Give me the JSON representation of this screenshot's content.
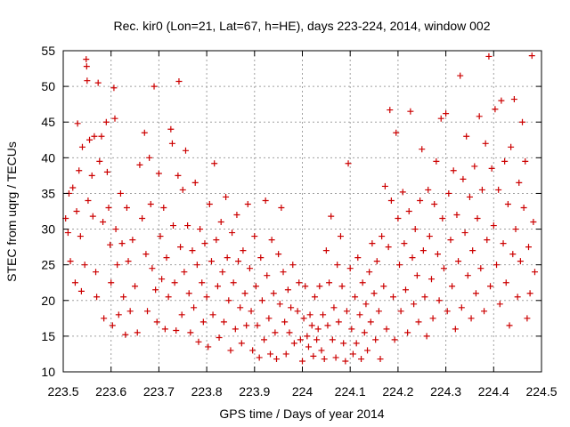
{
  "chart_data": {
    "type": "scatter",
    "title": "Rec. kir0 (Lon=21, Lat=67, h=HE), days 223-224, 2014, window 002",
    "xlabel": "GPS time / Days of year 2014",
    "ylabel": "STEC from uqrg / TECUs",
    "xlim": [
      223.5,
      224.5
    ],
    "ylim": [
      10,
      55
    ],
    "xticks": [
      "223.5",
      "223.6",
      "223.7",
      "223.8",
      "223.9",
      "224",
      "224.1",
      "224.2",
      "224.3",
      "224.4",
      "224.5"
    ],
    "xtick_values": [
      223.5,
      223.6,
      223.7,
      223.8,
      223.9,
      224.0,
      224.1,
      224.2,
      224.3,
      224.4,
      224.5
    ],
    "yticks": [
      "10",
      "15",
      "20",
      "25",
      "30",
      "35",
      "40",
      "45",
      "50",
      "55"
    ],
    "ytick_values": [
      10,
      15,
      20,
      25,
      30,
      35,
      40,
      45,
      50,
      55
    ],
    "grid": true,
    "marker": "+",
    "color": "#cc0000",
    "series": [
      {
        "points": [
          [
            223.505,
            31.5
          ],
          [
            223.51,
            29.5
          ],
          [
            223.512,
            35.0
          ],
          [
            223.515,
            25.5
          ],
          [
            223.52,
            35.8
          ],
          [
            223.525,
            22.5
          ],
          [
            223.528,
            32.5
          ],
          [
            223.53,
            44.8
          ],
          [
            223.533,
            38.2
          ],
          [
            223.536,
            29.0
          ],
          [
            223.538,
            21.3
          ],
          [
            223.54,
            41.5
          ],
          [
            223.545,
            25.0
          ],
          [
            223.548,
            53.8
          ],
          [
            223.549,
            52.8
          ],
          [
            223.55,
            50.8
          ],
          [
            223.552,
            34.0
          ],
          [
            223.555,
            42.5
          ],
          [
            223.56,
            37.5
          ],
          [
            223.562,
            31.8
          ],
          [
            223.565,
            43.0
          ],
          [
            223.568,
            24.0
          ],
          [
            223.57,
            20.5
          ],
          [
            223.573,
            50.5
          ],
          [
            223.576,
            39.5
          ],
          [
            223.58,
            43.0
          ],
          [
            223.583,
            31.0
          ],
          [
            223.585,
            17.5
          ],
          [
            223.59,
            45.0
          ],
          [
            223.592,
            38.0
          ],
          [
            223.595,
            33.0
          ],
          [
            223.598,
            27.8
          ],
          [
            223.6,
            22.5
          ],
          [
            223.603,
            16.5
          ],
          [
            223.606,
            49.8
          ],
          [
            223.608,
            45.5
          ],
          [
            223.61,
            30.0
          ],
          [
            223.613,
            25.0
          ],
          [
            223.616,
            18.0
          ],
          [
            223.62,
            35.0
          ],
          [
            223.623,
            28.0
          ],
          [
            223.626,
            20.5
          ],
          [
            223.63,
            15.2
          ],
          [
            223.633,
            33.0
          ],
          [
            223.636,
            25.5
          ],
          [
            223.64,
            18.5
          ],
          [
            223.645,
            28.5
          ],
          [
            223.65,
            22.0
          ],
          [
            223.655,
            15.5
          ],
          [
            223.66,
            39.0
          ],
          [
            223.665,
            31.5
          ],
          [
            223.67,
            43.5
          ],
          [
            223.673,
            26.5
          ],
          [
            223.676,
            18.5
          ],
          [
            223.68,
            40.0
          ],
          [
            223.683,
            33.5
          ],
          [
            223.686,
            24.5
          ],
          [
            223.69,
            50.0
          ],
          [
            223.693,
            21.5
          ],
          [
            223.696,
            17.0
          ],
          [
            223.7,
            37.8
          ],
          [
            223.703,
            29.0
          ],
          [
            223.706,
            23.0
          ],
          [
            223.71,
            33.0
          ],
          [
            223.713,
            16.0
          ],
          [
            223.716,
            26.0
          ],
          [
            223.72,
            20.5
          ],
          [
            223.725,
            44.0
          ],
          [
            223.728,
            42.0
          ],
          [
            223.73,
            30.5
          ],
          [
            223.733,
            22.5
          ],
          [
            223.736,
            15.8
          ],
          [
            223.74,
            37.5
          ],
          [
            223.742,
            50.7
          ],
          [
            223.745,
            27.5
          ],
          [
            223.748,
            18.0
          ],
          [
            223.75,
            35.5
          ],
          [
            223.753,
            24.0
          ],
          [
            223.756,
            41.0
          ],
          [
            223.76,
            30.5
          ],
          [
            223.763,
            21.0
          ],
          [
            223.766,
            15.5
          ],
          [
            223.77,
            27.0
          ],
          [
            223.773,
            19.0
          ],
          [
            223.776,
            36.5
          ],
          [
            223.78,
            25.0
          ],
          [
            223.783,
            14.2
          ],
          [
            223.786,
            30.0
          ],
          [
            223.79,
            22.5
          ],
          [
            223.793,
            17.0
          ],
          [
            223.796,
            28.0
          ],
          [
            223.8,
            20.5
          ],
          [
            223.803,
            13.5
          ],
          [
            223.806,
            33.5
          ],
          [
            223.81,
            25.5
          ],
          [
            223.813,
            18.0
          ],
          [
            223.816,
            39.2
          ],
          [
            223.82,
            28.5
          ],
          [
            223.823,
            22.0
          ],
          [
            223.826,
            14.8
          ],
          [
            223.83,
            31.0
          ],
          [
            223.833,
            24.0
          ],
          [
            223.836,
            17.0
          ],
          [
            223.84,
            34.5
          ],
          [
            223.843,
            26.0
          ],
          [
            223.846,
            20.0
          ],
          [
            223.85,
            13.0
          ],
          [
            223.853,
            29.5
          ],
          [
            223.856,
            22.5
          ],
          [
            223.86,
            16.0
          ],
          [
            223.863,
            32.0
          ],
          [
            223.866,
            25.5
          ],
          [
            223.87,
            19.0
          ],
          [
            223.873,
            14.0
          ],
          [
            223.876,
            27.0
          ],
          [
            223.88,
            21.0
          ],
          [
            223.883,
            16.5
          ],
          [
            223.886,
            33.5
          ],
          [
            223.89,
            24.5
          ],
          [
            223.893,
            18.5
          ],
          [
            223.896,
            13.0
          ],
          [
            223.9,
            29.0
          ],
          [
            223.903,
            22.0
          ],
          [
            223.906,
            16.5
          ],
          [
            223.91,
            12.0
          ],
          [
            223.913,
            26.0
          ],
          [
            223.916,
            20.0
          ],
          [
            223.92,
            14.5
          ],
          [
            223.923,
            34.0
          ],
          [
            223.926,
            23.5
          ],
          [
            223.93,
            17.5
          ],
          [
            223.933,
            12.5
          ],
          [
            223.936,
            28.5
          ],
          [
            223.94,
            21.0
          ],
          [
            223.943,
            15.5
          ],
          [
            223.946,
            11.8
          ],
          [
            223.95,
            26.5
          ],
          [
            223.953,
            19.5
          ],
          [
            223.956,
            33.0
          ],
          [
            223.96,
            24.0
          ],
          [
            223.963,
            17.0
          ],
          [
            223.966,
            12.5
          ],
          [
            223.97,
            21.5
          ],
          [
            223.973,
            15.5
          ],
          [
            223.976,
            19.0
          ],
          [
            223.98,
            25.0
          ],
          [
            223.983,
            14.0
          ],
          [
            223.99,
            18.5
          ],
          [
            223.993,
            22.5
          ],
          [
            223.996,
            14.5
          ],
          [
            224.0,
            11.5
          ],
          [
            224.003,
            17.5
          ],
          [
            224.006,
            22.0
          ],
          [
            224.01,
            15.0
          ],
          [
            224.013,
            13.5
          ],
          [
            224.016,
            18.0
          ],
          [
            224.02,
            16.5
          ],
          [
            224.023,
            12.2
          ],
          [
            224.026,
            20.5
          ],
          [
            224.03,
            14.5
          ],
          [
            224.033,
            16.0
          ],
          [
            224.036,
            22.0
          ],
          [
            224.04,
            13.0
          ],
          [
            224.043,
            18.0
          ],
          [
            224.046,
            11.8
          ],
          [
            224.05,
            27.0
          ],
          [
            224.053,
            16.5
          ],
          [
            224.056,
            22.5
          ],
          [
            224.06,
            31.8
          ],
          [
            224.063,
            14.5
          ],
          [
            224.066,
            19.0
          ],
          [
            224.07,
            12.0
          ],
          [
            224.073,
            25.0
          ],
          [
            224.076,
            17.0
          ],
          [
            224.08,
            29.0
          ],
          [
            224.083,
            22.0
          ],
          [
            224.086,
            14.0
          ],
          [
            224.09,
            11.5
          ],
          [
            224.093,
            18.5
          ],
          [
            224.096,
            39.2
          ],
          [
            224.1,
            24.5
          ],
          [
            224.103,
            16.0
          ],
          [
            224.106,
            12.5
          ],
          [
            224.11,
            20.5
          ],
          [
            224.113,
            14.0
          ],
          [
            224.116,
            26.0
          ],
          [
            224.12,
            18.0
          ],
          [
            224.123,
            11.8
          ],
          [
            224.126,
            22.5
          ],
          [
            224.13,
            15.5
          ],
          [
            224.133,
            19.5
          ],
          [
            224.136,
            13.0
          ],
          [
            224.14,
            24.0
          ],
          [
            224.143,
            17.0
          ],
          [
            224.146,
            28.0
          ],
          [
            224.15,
            21.0
          ],
          [
            224.153,
            14.5
          ],
          [
            224.156,
            25.5
          ],
          [
            224.16,
            18.5
          ],
          [
            224.163,
            11.8
          ],
          [
            224.166,
            29.0
          ],
          [
            224.17,
            22.0
          ],
          [
            224.173,
            36.0
          ],
          [
            224.176,
            16.0
          ],
          [
            224.18,
            27.5
          ],
          [
            224.183,
            46.7
          ],
          [
            224.186,
            34.0
          ],
          [
            224.19,
            20.5
          ],
          [
            224.193,
            14.5
          ],
          [
            224.196,
            43.5
          ],
          [
            224.2,
            31.5
          ],
          [
            224.203,
            25.0
          ],
          [
            224.206,
            18.5
          ],
          [
            224.21,
            35.2
          ],
          [
            224.213,
            28.0
          ],
          [
            224.216,
            21.5
          ],
          [
            224.22,
            15.5
          ],
          [
            224.223,
            32.5
          ],
          [
            224.226,
            46.5
          ],
          [
            224.23,
            26.0
          ],
          [
            224.233,
            19.5
          ],
          [
            224.236,
            30.0
          ],
          [
            224.24,
            23.5
          ],
          [
            224.243,
            17.0
          ],
          [
            224.246,
            34.0
          ],
          [
            224.25,
            41.2
          ],
          [
            224.253,
            27.0
          ],
          [
            224.256,
            20.5
          ],
          [
            224.26,
            15.0
          ],
          [
            224.263,
            35.5
          ],
          [
            224.266,
            29.0
          ],
          [
            224.27,
            23.0
          ],
          [
            224.273,
            17.5
          ],
          [
            224.276,
            33.5
          ],
          [
            224.28,
            39.5
          ],
          [
            224.283,
            26.5
          ],
          [
            224.286,
            20.0
          ],
          [
            224.29,
            45.5
          ],
          [
            224.293,
            31.5
          ],
          [
            224.296,
            24.5
          ],
          [
            224.3,
            46.2
          ],
          [
            224.303,
            18.5
          ],
          [
            224.306,
            35.0
          ],
          [
            224.31,
            28.5
          ],
          [
            224.313,
            22.0
          ],
          [
            224.316,
            38.2
          ],
          [
            224.32,
            16.0
          ],
          [
            224.323,
            32.0
          ],
          [
            224.326,
            25.5
          ],
          [
            224.33,
            51.5
          ],
          [
            224.333,
            19.0
          ],
          [
            224.336,
            37.0
          ],
          [
            224.34,
            29.5
          ],
          [
            224.343,
            43.0
          ],
          [
            224.346,
            23.5
          ],
          [
            224.35,
            34.5
          ],
          [
            224.353,
            17.5
          ],
          [
            224.356,
            27.0
          ],
          [
            224.36,
            38.8
          ],
          [
            224.363,
            21.0
          ],
          [
            224.366,
            31.5
          ],
          [
            224.37,
            45.8
          ],
          [
            224.373,
            24.5
          ],
          [
            224.376,
            35.5
          ],
          [
            224.38,
            18.5
          ],
          [
            224.383,
            42.0
          ],
          [
            224.386,
            28.5
          ],
          [
            224.39,
            54.2
          ],
          [
            224.393,
            22.0
          ],
          [
            224.396,
            38.5
          ],
          [
            224.4,
            30.5
          ],
          [
            224.403,
            46.8
          ],
          [
            224.406,
            25.0
          ],
          [
            224.41,
            35.5
          ],
          [
            224.413,
            19.5
          ],
          [
            224.416,
            48.0
          ],
          [
            224.42,
            28.0
          ],
          [
            224.423,
            39.5
          ],
          [
            224.426,
            22.5
          ],
          [
            224.43,
            33.5
          ],
          [
            224.433,
            16.5
          ],
          [
            224.436,
            41.5
          ],
          [
            224.44,
            26.5
          ],
          [
            224.443,
            48.2
          ],
          [
            224.446,
            30.0
          ],
          [
            224.45,
            20.5
          ],
          [
            224.453,
            36.5
          ],
          [
            224.456,
            25.5
          ],
          [
            224.46,
            45.0
          ],
          [
            224.463,
            33.0
          ],
          [
            224.466,
            39.5
          ],
          [
            224.47,
            17.5
          ],
          [
            224.473,
            27.5
          ],
          [
            224.476,
            21.0
          ],
          [
            224.48,
            54.3
          ],
          [
            224.483,
            31.0
          ],
          [
            224.486,
            24.0
          ]
        ]
      }
    ]
  }
}
